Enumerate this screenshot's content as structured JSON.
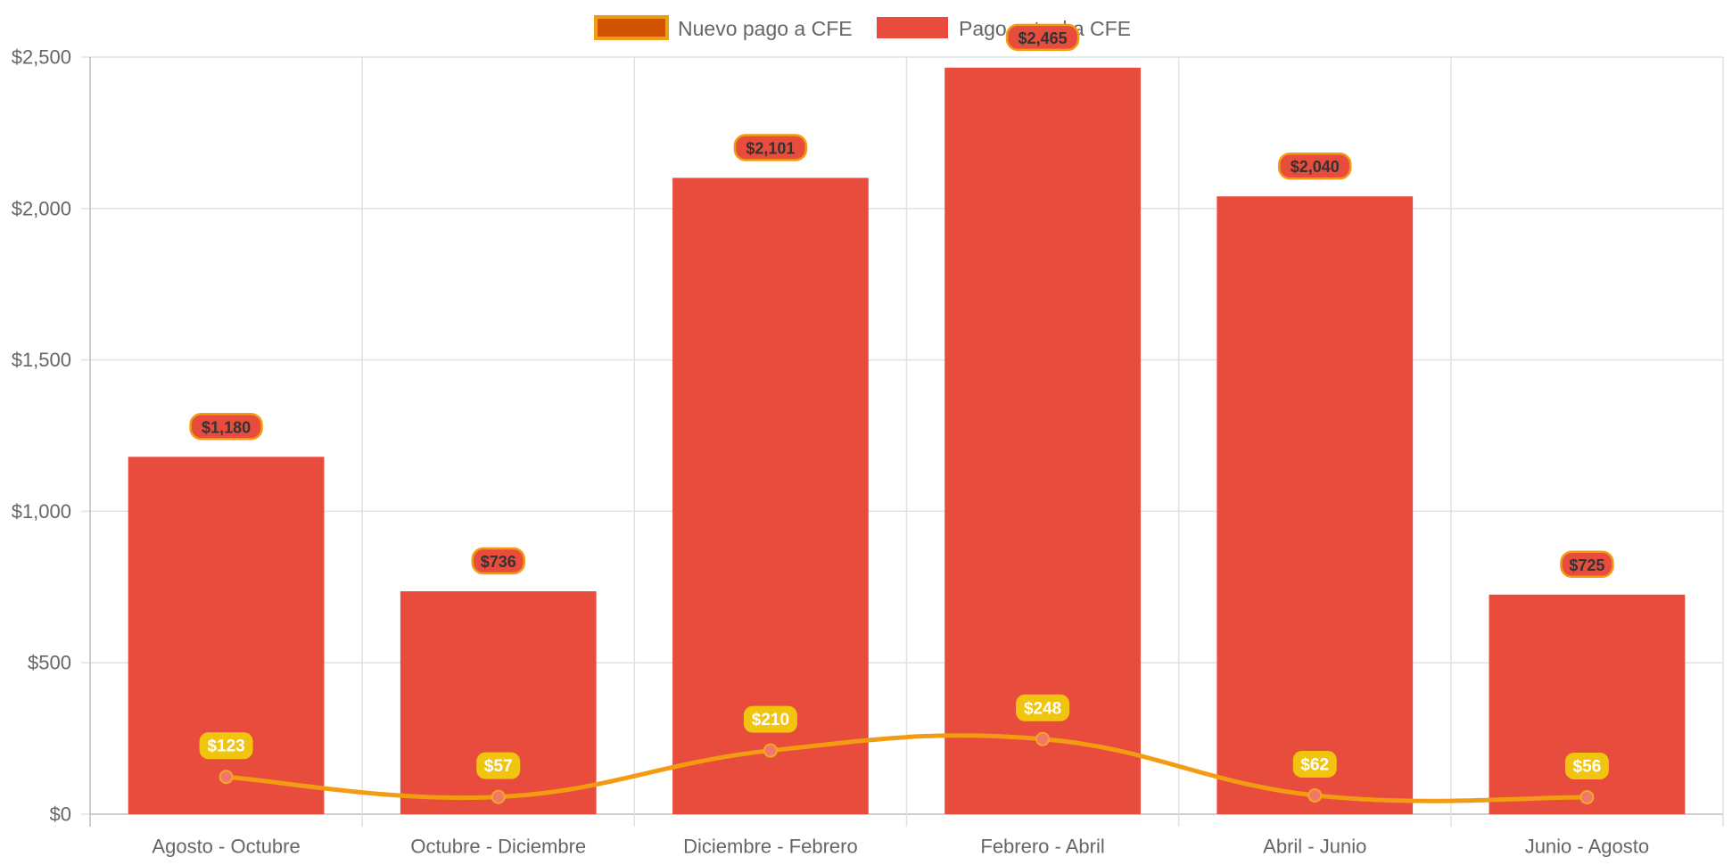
{
  "chart_data": {
    "type": "bar",
    "categories": [
      "Agosto - Octubre",
      "Octubre - Diciembre",
      "Diciembre - Febrero",
      "Febrero - Abril",
      "Abril - Junio",
      "Junio - Agosto"
    ],
    "series": [
      {
        "name": "Nuevo pago a CFE",
        "type": "line",
        "values": [
          123,
          57,
          210,
          248,
          62,
          56
        ],
        "labels": [
          "$123",
          "$57",
          "$210",
          "$248",
          "$62",
          "$56"
        ],
        "color": "#f39c12",
        "point_color": "#f0786a",
        "label_bg": "#f1c40f",
        "legend_fill": "#d35400"
      },
      {
        "name": "Pago actual a CFE",
        "type": "bar",
        "values": [
          1180,
          736,
          2101,
          2465,
          2040,
          725
        ],
        "labels": [
          "$1,180",
          "$736",
          "$2,101",
          "$2,465",
          "$2,040",
          "$725"
        ],
        "color": "#e74c3c",
        "label_border": "#f39c12"
      }
    ],
    "y_ticks": [
      "$0",
      "$500",
      "$1,000",
      "$1,500",
      "$2,000",
      "$2,500"
    ],
    "ylim": [
      0,
      2500
    ],
    "grid": true,
    "legend_position": "top-center",
    "xlabel": "",
    "ylabel": ""
  }
}
